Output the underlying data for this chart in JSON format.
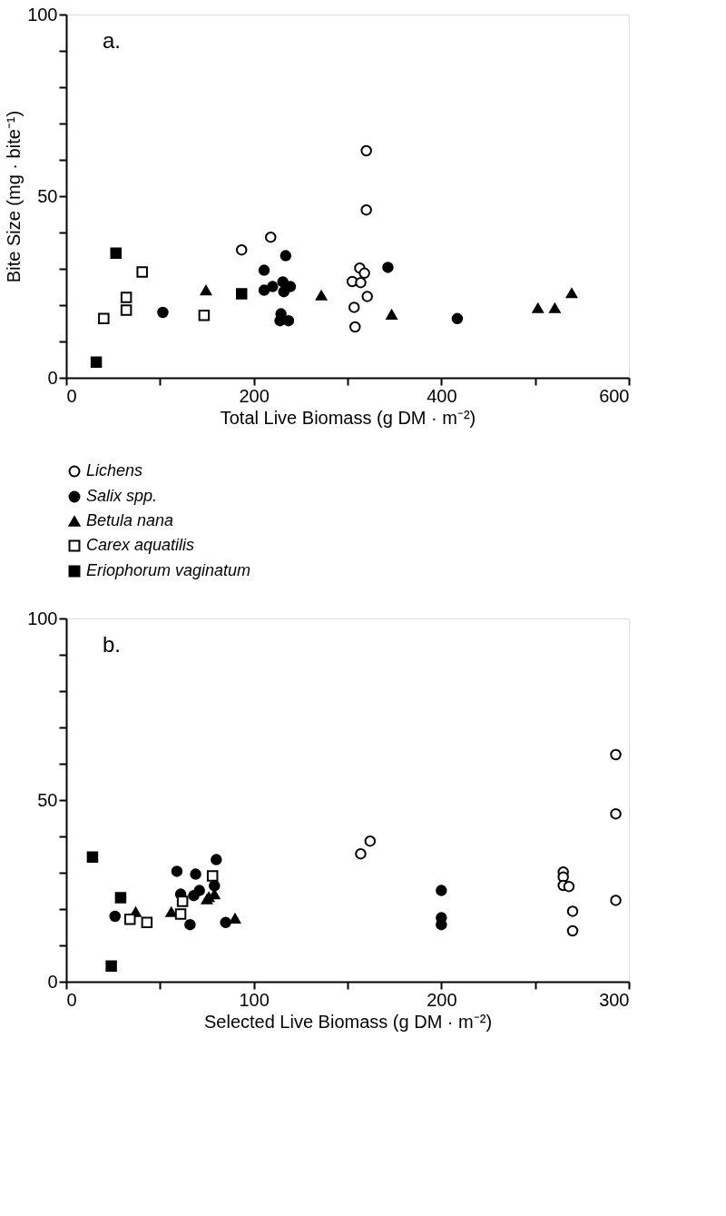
{
  "chart_data": [
    {
      "type": "scatter",
      "annotations": [
        "a."
      ],
      "xlabel": "Total Live Biomass (g DM · m⁻²)",
      "ylabel": "Bite Size (mg · bite⁻¹)",
      "xlim": [
        0,
        600
      ],
      "ylim": [
        0,
        100
      ],
      "xticks": [
        0,
        {
          "value": 100,
          "label": null
        },
        200,
        {
          "value": 300,
          "label": null
        },
        400,
        {
          "value": 500,
          "label": null
        },
        600
      ],
      "yticks": [
        0,
        {
          "value": 10,
          "label": null
        },
        {
          "value": 20,
          "label": null
        },
        {
          "value": 30,
          "label": null
        },
        {
          "value": 40,
          "label": null
        },
        50,
        {
          "value": 60,
          "label": null
        },
        {
          "value": 70,
          "label": null
        },
        {
          "value": 80,
          "label": null
        },
        {
          "value": 90,
          "label": null
        },
        100
      ],
      "grid": false,
      "legend": "bottom",
      "series": [
        {
          "name": "Lichens",
          "color": "#ffffff",
          "marker": "circle",
          "x": [
            187,
            218,
            320,
            320,
            313,
            318,
            305,
            314,
            321,
            307,
            308
          ],
          "values": [
            35.2,
            38.7,
            62.5,
            46.2,
            30.2,
            28.8,
            26.5,
            26.2,
            22.4,
            19.4,
            14.0
          ]
        },
        {
          "name": "Salix spp.",
          "color": "#000000",
          "marker": "circle",
          "x": [
            103,
            211,
            234,
            211,
            220,
            231,
            232,
            239,
            229,
            228,
            237,
            343,
            417
          ],
          "values": [
            18.0,
            29.6,
            33.6,
            24.1,
            25.1,
            26.4,
            23.7,
            25.1,
            17.6,
            15.7,
            15.7,
            30.4,
            16.3
          ]
        },
        {
          "name": "Betula nana",
          "color": "#000000",
          "marker": "triangle",
          "x": [
            149,
            272,
            347,
            503,
            521,
            539
          ],
          "values": [
            24.1,
            22.7,
            17.4,
            19.2,
            19.2,
            23.3
          ]
        },
        {
          "name": "Carex aquatilis",
          "color": "#ffffff",
          "marker": "square",
          "x": [
            40,
            64,
            64,
            81,
            147
          ],
          "values": [
            16.3,
            22.1,
            18.6,
            29.1,
            17.2
          ]
        },
        {
          "name": "Eriophorum vaginatum",
          "color": "#000000",
          "marker": "square",
          "x": [
            32,
            53,
            187
          ],
          "values": [
            4.3,
            34.3,
            23.1
          ]
        }
      ]
    },
    {
      "type": "scatter",
      "annotations": [
        "b."
      ],
      "xlabel": "Selected Live Biomass (g DM · m⁻²)",
      "xlim": [
        0,
        300
      ],
      "ylim": [
        0,
        100
      ],
      "xticks": [
        0,
        {
          "value": 50,
          "label": null
        },
        100,
        {
          "value": 150,
          "label": null
        },
        200,
        {
          "value": 250,
          "label": null
        },
        300
      ],
      "yticks": [
        0,
        {
          "value": 10,
          "label": null
        },
        {
          "value": 20,
          "label": null
        },
        {
          "value": 30,
          "label": null
        },
        {
          "value": 40,
          "label": null
        },
        50,
        {
          "value": 60,
          "label": null
        },
        {
          "value": 70,
          "label": null
        },
        {
          "value": 80,
          "label": null
        },
        {
          "value": 90,
          "label": null
        },
        100
      ],
      "grid": false,
      "series": [
        {
          "color": "#ffffff",
          "marker": "circle",
          "x": [
            157,
            162,
            265,
            265,
            265,
            268,
            270,
            270,
            293,
            293,
            293
          ],
          "values": [
            35.2,
            38.7,
            30.2,
            28.8,
            26.5,
            26.2,
            19.4,
            14.0,
            62.5,
            46.2,
            22.4
          ]
        },
        {
          "color": "#000000",
          "marker": "circle",
          "x": [
            26,
            59,
            61,
            66,
            68,
            69,
            71,
            79,
            80,
            85,
            200,
            200,
            200
          ],
          "values": [
            18.0,
            30.4,
            24.1,
            15.7,
            23.7,
            29.6,
            25.1,
            26.4,
            33.6,
            16.3,
            25.1,
            17.6,
            15.7
          ]
        },
        {
          "color": "#000000",
          "marker": "triangle",
          "x": [
            37,
            56,
            75,
            76,
            79,
            90
          ],
          "values": [
            19.2,
            19.2,
            22.7,
            23.3,
            24.1,
            17.4
          ]
        },
        {
          "color": "#ffffff",
          "marker": "square",
          "x": [
            34,
            43,
            61,
            62,
            78
          ],
          "values": [
            17.2,
            16.3,
            18.6,
            22.1,
            29.1
          ]
        },
        {
          "color": "#000000",
          "marker": "square",
          "x": [
            14,
            24,
            29
          ],
          "values": [
            34.3,
            4.3,
            23.1
          ]
        }
      ]
    }
  ]
}
